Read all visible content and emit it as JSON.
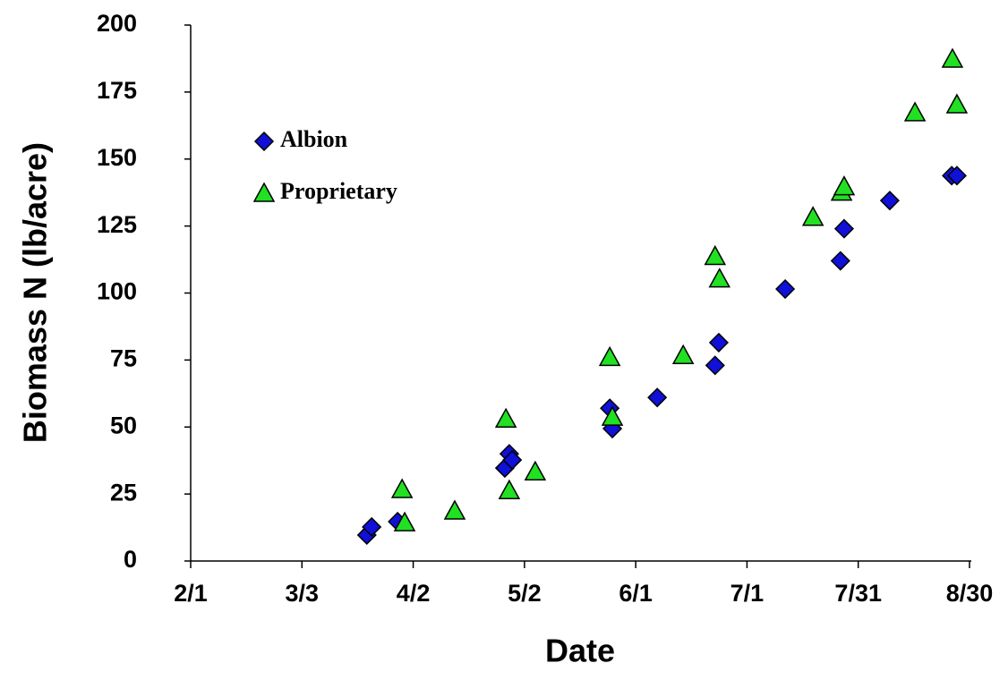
{
  "chart_data": {
    "type": "scatter",
    "xlabel": "Date",
    "ylabel": "Biomass N (lb/acre)",
    "xlim": [
      32,
      242
    ],
    "ylim": [
      0,
      200
    ],
    "xticks": [
      {
        "value": 32,
        "label": "2/1"
      },
      {
        "value": 62,
        "label": "3/3"
      },
      {
        "value": 92,
        "label": "4/2"
      },
      {
        "value": 122,
        "label": "5/2"
      },
      {
        "value": 152,
        "label": "6/1"
      },
      {
        "value": 182,
        "label": "7/1"
      },
      {
        "value": 212,
        "label": "7/31"
      },
      {
        "value": 242,
        "label": "8/30"
      }
    ],
    "yticks": [
      0,
      25,
      50,
      75,
      100,
      125,
      150,
      175,
      200
    ],
    "legend": "upper left",
    "series": [
      {
        "name": "Albion",
        "color": "#1010d8",
        "marker": "diamond",
        "x": [
          79.5,
          80.8,
          87.8,
          116.7,
          117.9,
          118.7,
          145.0,
          145.7,
          157.8,
          173.4,
          174.4,
          192.3,
          207.2,
          208.2,
          220.5,
          237.2,
          238.6
        ],
        "values": [
          9.7,
          12.7,
          14.7,
          34.7,
          40,
          37.7,
          57,
          49.4,
          61,
          73,
          81.5,
          101.5,
          112,
          124,
          134.5,
          143.8,
          143.8
        ]
      },
      {
        "name": "Proprietary",
        "color": "#22e022",
        "marker": "triangle",
        "x": [
          89.0,
          89.7,
          103.2,
          117.0,
          117.9,
          124.9,
          145.0,
          145.7,
          164.8,
          173.4,
          174.6,
          199.8,
          207.5,
          208.2,
          227.3,
          237.4,
          238.6
        ],
        "values": [
          26.7,
          14.3,
          18.7,
          53,
          26.3,
          33.3,
          76,
          53.7,
          76.7,
          113.7,
          105.3,
          128.3,
          137.7,
          139.7,
          167.3,
          187.3,
          170.3
        ]
      }
    ]
  }
}
